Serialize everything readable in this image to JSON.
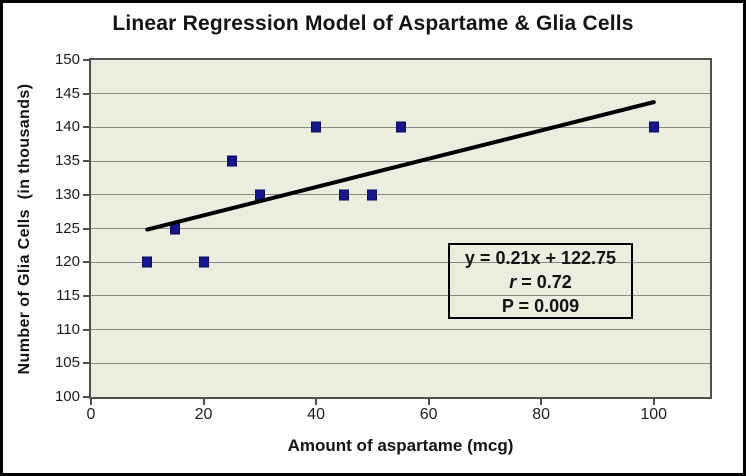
{
  "chart_data": {
    "type": "scatter",
    "title": "Linear Regression Model of Aspartame & Glia Cells",
    "xlabel": "Amount of aspartame (mcg)",
    "ylabel": "Number of Glia Cells  (in thousands)",
    "xlim": [
      0,
      110
    ],
    "ylim": [
      100,
      150
    ],
    "xticks": [
      0,
      20,
      40,
      60,
      80,
      100
    ],
    "yticks": [
      100,
      105,
      110,
      115,
      120,
      125,
      130,
      135,
      140,
      145,
      150
    ],
    "grid": true,
    "legend": "none",
    "points": [
      {
        "x": 10,
        "y": 120
      },
      {
        "x": 15,
        "y": 125
      },
      {
        "x": 20,
        "y": 120
      },
      {
        "x": 25,
        "y": 135
      },
      {
        "x": 30,
        "y": 130
      },
      {
        "x": 40,
        "y": 140
      },
      {
        "x": 45,
        "y": 130
      },
      {
        "x": 50,
        "y": 130
      },
      {
        "x": 55,
        "y": 140
      },
      {
        "x": 100,
        "y": 140
      }
    ],
    "trendline": {
      "slope": 0.21,
      "intercept": 122.75,
      "x_start": 10,
      "x_end": 100,
      "color": "#000000",
      "width": 4
    },
    "annotation": {
      "equation": "y = 0.21x + 122.75",
      "r_symbol": "r",
      "r_rest": " = 0.72",
      "p_line": "P = 0.009"
    },
    "colors": {
      "marker": "#17178c",
      "marker_border": "#0a0a5e",
      "plot_background": "#ebeedf",
      "gridline": "#8a8a8a",
      "axis_border": "#4f4f4f",
      "text": "#141414"
    }
  }
}
